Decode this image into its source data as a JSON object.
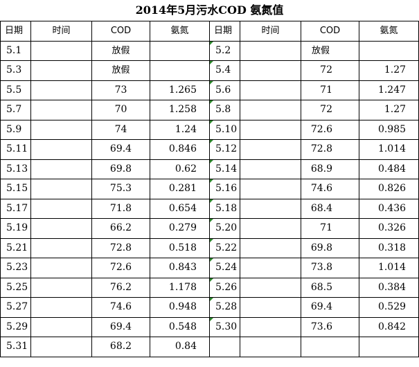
{
  "title": "2014年5月污水COD 氨氮值",
  "headers": [
    "日期",
    "时间",
    "COD",
    "氨氮",
    "日期",
    "时间",
    "COD",
    "氨氮"
  ],
  "rows": [
    {
      "d1": "5.1",
      "cod1": "放假",
      "nh1": "",
      "d2": "5.2",
      "cod2": "放假",
      "nh2": ""
    },
    {
      "d1": "5.3",
      "cod1": "放假",
      "nh1": "",
      "d2": "5.4",
      "cod2": "72",
      "nh2": "1.27"
    },
    {
      "d1": "5.5",
      "cod1": "73",
      "nh1": "1.265",
      "d2": "5.6",
      "cod2": "71",
      "nh2": "1.247"
    },
    {
      "d1": "5.7",
      "cod1": "70",
      "nh1": "1.258",
      "d2": "5.8",
      "cod2": "72",
      "nh2": "1.27"
    },
    {
      "d1": "5.9",
      "cod1": "74",
      "nh1": "1.24",
      "d2": "5.10",
      "cod2": "72.6",
      "nh2": "0.985"
    },
    {
      "d1": "5.11",
      "cod1": "69.4",
      "nh1": "0.846",
      "d2": "5.12",
      "cod2": "72.8",
      "nh2": "1.014"
    },
    {
      "d1": "5.13",
      "cod1": "69.8",
      "nh1": "0.62",
      "d2": "5.14",
      "cod2": "68.9",
      "nh2": "0.484"
    },
    {
      "d1": "5.15",
      "cod1": "75.3",
      "nh1": "0.281",
      "d2": "5.16",
      "cod2": "74.6",
      "nh2": "0.826"
    },
    {
      "d1": "5.17",
      "cod1": "71.8",
      "nh1": "0.654",
      "d2": "5.18",
      "cod2": "68.4",
      "nh2": "0.436"
    },
    {
      "d1": "5.19",
      "cod1": "66.2",
      "nh1": "0.279",
      "d2": "5.20",
      "cod2": "71",
      "nh2": "0.326"
    },
    {
      "d1": "5.21",
      "cod1": "72.8",
      "nh1": "0.518",
      "d2": "5.22",
      "cod2": "69.8",
      "nh2": "0.318"
    },
    {
      "d1": "5.23",
      "cod1": "72.6",
      "nh1": "0.843",
      "d2": "5.24",
      "cod2": "73.8",
      "nh2": "1.014"
    },
    {
      "d1": "5.25",
      "cod1": "76.2",
      "nh1": "1.178",
      "d2": "5.26",
      "cod2": "68.5",
      "nh2": "0.384"
    },
    {
      "d1": "5.27",
      "cod1": "74.6",
      "nh1": "0.948",
      "d2": "5.28",
      "cod2": "69.4",
      "nh2": "0.529"
    },
    {
      "d1": "5.29",
      "cod1": "69.4",
      "nh1": "0.548",
      "d2": "5.30",
      "cod2": "73.6",
      "nh2": "0.842"
    },
    {
      "d1": "5.31",
      "cod1": "68.2",
      "nh1": "0.84",
      "d2": "",
      "cod2": "",
      "nh2": ""
    }
  ],
  "colors": {
    "grid": "#000000",
    "flag": "#2e8b2e"
  }
}
